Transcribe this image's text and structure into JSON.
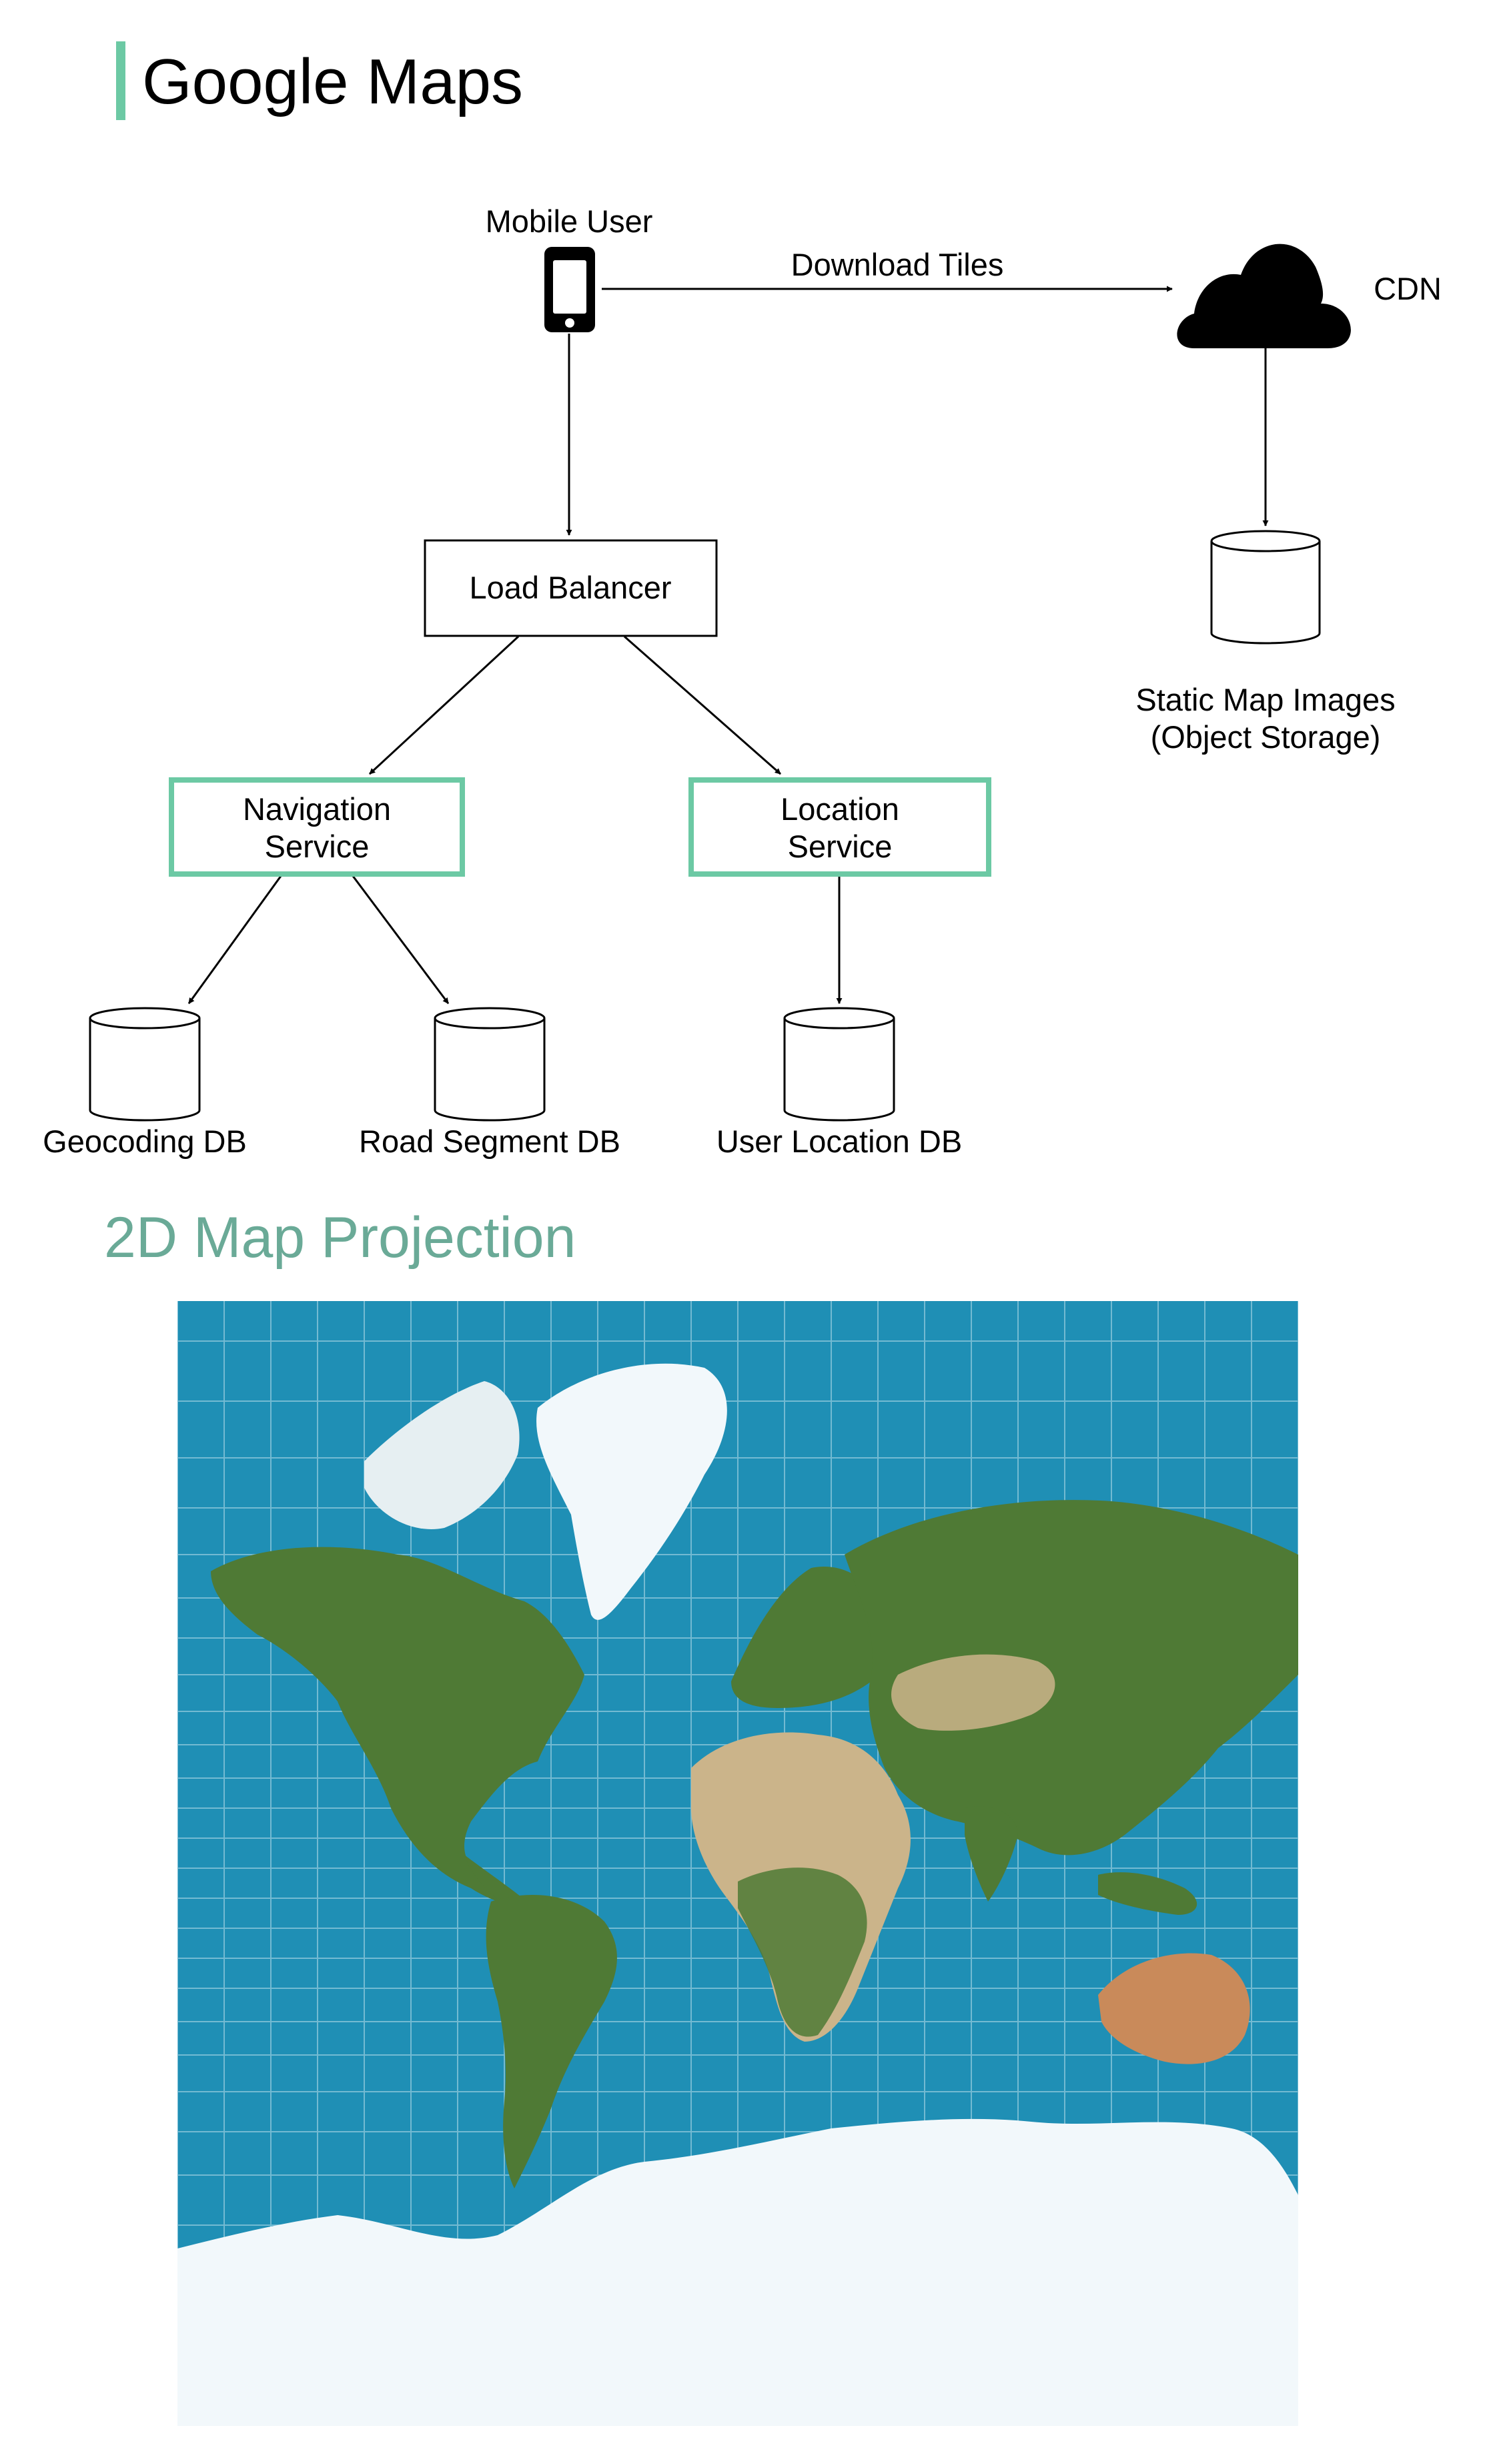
{
  "page": {
    "title": "Google Maps",
    "section_heading": "2D Map Projection"
  },
  "diagram": {
    "mobile_user_label": "Mobile User",
    "download_tiles_label": "Download Tiles",
    "cdn_label": "CDN",
    "static_map_images_line1": "Static Map Images",
    "static_map_images_line2": "(Object Storage)",
    "load_balancer_label": "Load Balancer",
    "navigation_service_line1": "Navigation",
    "navigation_service_line2": "Service",
    "location_service_line1": "Location",
    "location_service_line2": "Service",
    "geocoding_db_label": "Geocoding DB",
    "road_segment_db_label": "Road Segment DB",
    "user_location_db_label": "User Location DB",
    "accent_color": "#6cc9a4"
  },
  "map": {
    "ocean_color": "#1f8fb5",
    "land_color": "#4f7a35",
    "desert_color": "#cbb48a",
    "ice_color": "#f2f8fb",
    "grid_color": "#8fc9dc"
  }
}
